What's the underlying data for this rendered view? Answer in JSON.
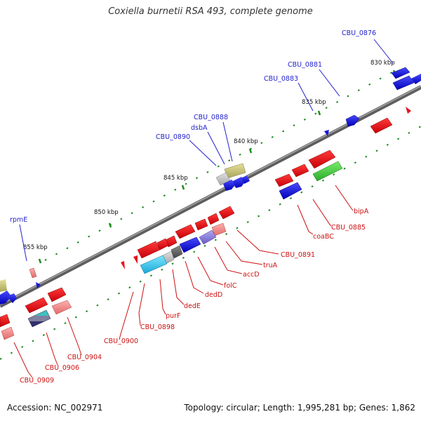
{
  "title": "Coxiella burnetii RSA 493, complete genome",
  "footer": {
    "accession": "Accession: NC_002971",
    "summary": "Topology: circular; Length: 1,995,281 bp; Genes: 1,862"
  },
  "colors": {
    "backbone": "#7a7a7a",
    "forward_label": "#2222cc",
    "reverse_label": "#cc1111",
    "tick": "#1e8a1e",
    "forward_gene": "#1515dd",
    "reverse_gene": "#e8101a"
  },
  "ticks": [
    {
      "key": "t830",
      "label": "830 kbp"
    },
    {
      "key": "t835",
      "label": "835 kbp"
    },
    {
      "key": "t840",
      "label": "840 kbp"
    },
    {
      "key": "t845",
      "label": "845 kbp"
    },
    {
      "key": "t850",
      "label": "850 kbp"
    },
    {
      "key": "t855",
      "label": "855 kbp"
    }
  ],
  "forward_labels": [
    {
      "key": "cbu0876",
      "text": "CBU_0876"
    },
    {
      "key": "cbu0881",
      "text": "CBU_0881"
    },
    {
      "key": "cbu0883",
      "text": "CBU_0883"
    },
    {
      "key": "cbu0888",
      "text": "CBU_0888"
    },
    {
      "key": "dsba",
      "text": "dsbA"
    },
    {
      "key": "cbu0890",
      "text": "CBU_0890"
    },
    {
      "key": "rpme",
      "text": "rpmE"
    }
  ],
  "reverse_labels": [
    {
      "key": "bipa",
      "text": "bipA"
    },
    {
      "key": "cbu0885",
      "text": "CBU_0885"
    },
    {
      "key": "coabc",
      "text": "coaBC"
    },
    {
      "key": "cbu0891",
      "text": "CBU_0891"
    },
    {
      "key": "trua",
      "text": "truA"
    },
    {
      "key": "accd",
      "text": "accD"
    },
    {
      "key": "folc",
      "text": "folC"
    },
    {
      "key": "dedd",
      "text": "dedD"
    },
    {
      "key": "dede",
      "text": "dedE"
    },
    {
      "key": "purf",
      "text": "purF"
    },
    {
      "key": "cbu0898",
      "text": "CBU_0898"
    },
    {
      "key": "cbu0900",
      "text": "CBU_0900"
    },
    {
      "key": "cbu0904",
      "text": "CBU_0904"
    },
    {
      "key": "cbu0906",
      "text": "CBU_0906"
    },
    {
      "key": "cbu0909",
      "text": "CBU_0909"
    }
  ]
}
